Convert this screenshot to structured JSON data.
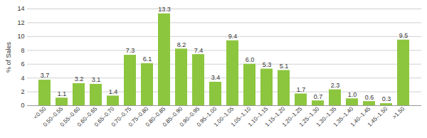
{
  "chart_data": {
    "type": "bar",
    "y_label": "% of Sales",
    "categories": [
      "<0.50",
      "0.50–0.55",
      "0.55–0.60",
      "0.60–0.65",
      "0.65–0.70",
      "0.70–0.75",
      "0.75–0.80",
      "0.80–0.85",
      "0.85–0.90",
      "0.90–0.95",
      "0.95–1.00",
      "1.00–1.05",
      "1.05–1.10",
      "1.10–1.15",
      "1.15–1.20",
      "1.20–1.25",
      "1.25–1.30",
      "1.30–1.35",
      "1.35–1.40",
      "1.40–1.45",
      "1.45–1.50",
      ">1.50"
    ],
    "values": [
      3.7,
      1.1,
      3.2,
      3.1,
      1.4,
      7.3,
      6.1,
      13.3,
      8.2,
      7.4,
      3.4,
      9.4,
      6.0,
      5.3,
      5.1,
      1.7,
      0.7,
      2.3,
      1.0,
      0.6,
      0.3,
      9.5
    ],
    "value_labels": [
      "3.7",
      "1.1",
      "3.2",
      "3.1",
      "1.4",
      "7.3",
      "6.1",
      "13.3",
      "8.2",
      "7.4",
      "3.4",
      "9.4",
      "6.0",
      "5.3",
      "5.1",
      "1.7",
      "0.7",
      "2.3",
      "1.0",
      "0.6",
      "0.3",
      "9.5"
    ],
    "color": "#8cc63e",
    "ylim": [
      0,
      14
    ],
    "yticks": [
      0,
      2,
      4,
      6,
      8,
      10,
      12,
      14
    ],
    "grid": true,
    "data_labels": true
  }
}
